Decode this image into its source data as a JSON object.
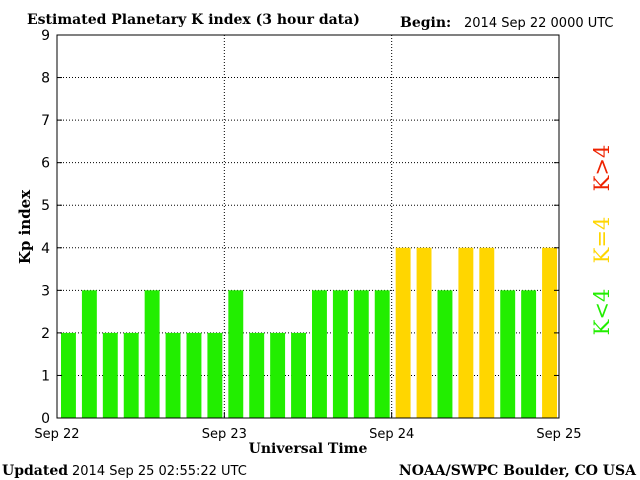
{
  "chart_data": {
    "type": "bar",
    "title": "Estimated Planetary K index (3 hour data)",
    "begin_label": "Begin:",
    "begin_value": "2014 Sep 22 0000 UTC",
    "xlabel": "Universal Time",
    "ylabel": "Kp index",
    "ylim": [
      0,
      9
    ],
    "y_ticks": [
      "0",
      "1",
      "2",
      "3",
      "4",
      "5",
      "6",
      "7",
      "8",
      "9"
    ],
    "x_ticks": [
      "Sep 22",
      "Sep 23",
      "Sep 24",
      "Sep 25"
    ],
    "values": [
      2,
      3,
      2,
      2,
      3,
      2,
      2,
      2,
      3,
      2,
      2,
      2,
      3,
      3,
      3,
      3,
      4,
      4,
      3,
      4,
      4,
      3,
      3,
      4
    ],
    "grid": true,
    "legend": {
      "placement": "right",
      "items": [
        {
          "label": "K<4",
          "color": "#22ee00"
        },
        {
          "label": "K=4",
          "color": "#ffd600"
        },
        {
          "label": "K>4",
          "color": "#ee2200"
        }
      ]
    },
    "colors": {
      "below4": "#22ee00",
      "equal4": "#ffd600",
      "above4": "#ee2200"
    }
  },
  "footer": {
    "updated_label": "Updated",
    "updated_value": "2014 Sep 25 02:55:22 UTC",
    "source": "NOAA/SWPC Boulder, CO USA"
  }
}
